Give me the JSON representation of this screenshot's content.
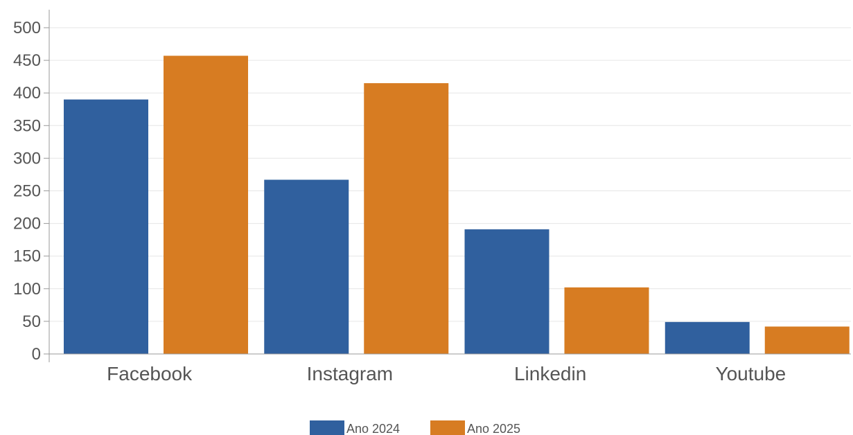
{
  "chart_data": {
    "type": "bar",
    "title": "",
    "xlabel": "",
    "ylabel": "",
    "categories": [
      "Facebook",
      "Instagram",
      "Linkedin",
      "Youtube"
    ],
    "series": [
      {
        "name": "Ano 2024",
        "color": "#30609e",
        "values": [
          390,
          267,
          191,
          49
        ]
      },
      {
        "name": "Ano 2025",
        "color": "#d77c22",
        "values": [
          457,
          415,
          102,
          42
        ]
      }
    ],
    "ylim": [
      0,
      500
    ],
    "yticks": [
      0,
      50,
      100,
      150,
      200,
      250,
      300,
      350,
      400,
      450,
      500
    ],
    "grid": true,
    "legend_position": "bottom-center"
  }
}
